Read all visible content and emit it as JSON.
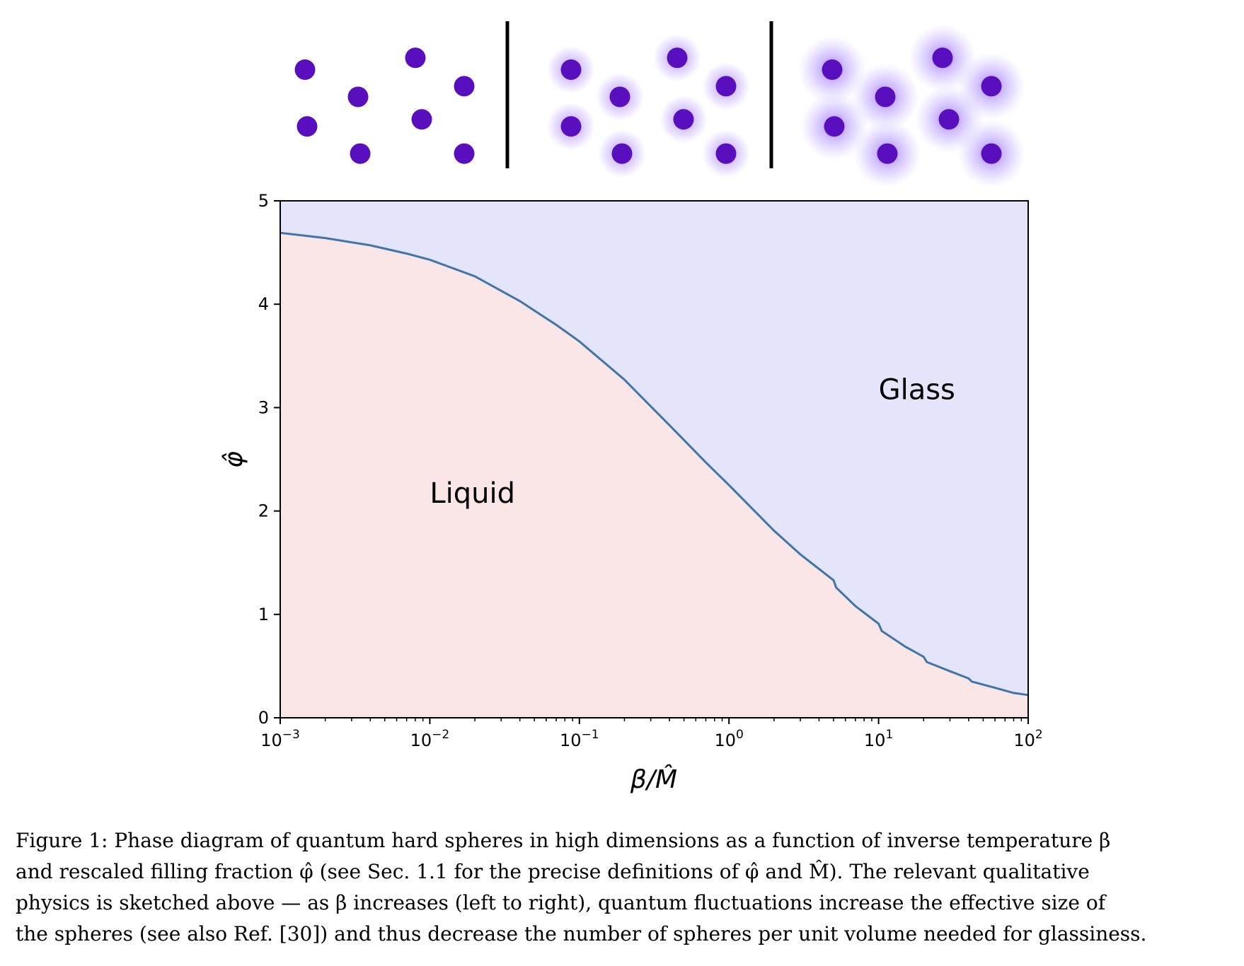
{
  "colors": {
    "sphere": "#5a0fbe",
    "halo": "#a07cff",
    "liquid_fill": "#fae6e6",
    "glass_fill": "#e4e4fa",
    "boundary": "#3f75aa"
  },
  "chart_data": {
    "type": "area",
    "x_scale": "log",
    "xlabel": "β/M̂",
    "ylabel": "φ̂",
    "xlim": [
      0.001,
      100
    ],
    "ylim": [
      0,
      5
    ],
    "x_ticks": [
      {
        "value": 0.001,
        "base": "10",
        "exp": "−3"
      },
      {
        "value": 0.01,
        "base": "10",
        "exp": "−2"
      },
      {
        "value": 0.1,
        "base": "10",
        "exp": "−1"
      },
      {
        "value": 1,
        "base": "10",
        "exp": "0"
      },
      {
        "value": 10,
        "base": "10",
        "exp": "1"
      },
      {
        "value": 100,
        "base": "10",
        "exp": "2"
      }
    ],
    "y_ticks": [
      {
        "value": 0,
        "label": "0"
      },
      {
        "value": 1,
        "label": "1"
      },
      {
        "value": 2,
        "label": "2"
      },
      {
        "value": 3,
        "label": "3"
      },
      {
        "value": 4,
        "label": "4"
      },
      {
        "value": 5,
        "label": "5"
      }
    ],
    "boundary": {
      "x": [
        0.001,
        0.002,
        0.004,
        0.007,
        0.01,
        0.02,
        0.04,
        0.07,
        0.1,
        0.2,
        0.4,
        0.7,
        1.0,
        2.0,
        3.0,
        5.0,
        5.2,
        7.0,
        10.0,
        10.5,
        15.0,
        20.0,
        21.0,
        30.0,
        40.0,
        42.0,
        60.0,
        80.0,
        100.0
      ],
      "y": [
        4.69,
        4.64,
        4.57,
        4.49,
        4.43,
        4.27,
        4.03,
        3.8,
        3.64,
        3.27,
        2.83,
        2.47,
        2.25,
        1.81,
        1.58,
        1.33,
        1.26,
        1.08,
        0.91,
        0.84,
        0.69,
        0.59,
        0.54,
        0.45,
        0.38,
        0.35,
        0.29,
        0.24,
        0.22
      ]
    },
    "regions": [
      {
        "name": "Liquid",
        "label_x": 0.01,
        "label_y": 2.08
      },
      {
        "name": "Glass",
        "label_x": 10.0,
        "label_y": 3.08
      }
    ],
    "grid": false,
    "legend": "none"
  },
  "illustration": {
    "panels": [
      {
        "halo": "none",
        "spheres": [
          [
            0.17,
            0.29
          ],
          [
            0.42,
            0.52
          ],
          [
            0.69,
            0.19
          ],
          [
            0.92,
            0.43
          ],
          [
            0.18,
            0.77
          ],
          [
            0.43,
            1.0
          ],
          [
            0.72,
            0.71
          ],
          [
            0.92,
            1.0
          ]
        ]
      },
      {
        "halo": "small",
        "spheres": [
          [
            0.19,
            0.29
          ],
          [
            0.42,
            0.52
          ],
          [
            0.69,
            0.19
          ],
          [
            0.92,
            0.43
          ],
          [
            0.19,
            0.77
          ],
          [
            0.43,
            1.0
          ],
          [
            0.72,
            0.71
          ],
          [
            0.92,
            1.0
          ]
        ]
      },
      {
        "halo": "large",
        "spheres": [
          [
            0.17,
            0.29
          ],
          [
            0.42,
            0.52
          ],
          [
            0.69,
            0.19
          ],
          [
            0.92,
            0.43
          ],
          [
            0.18,
            0.77
          ],
          [
            0.43,
            1.0
          ],
          [
            0.72,
            0.71
          ],
          [
            0.92,
            1.0
          ]
        ]
      }
    ]
  },
  "caption": {
    "lines": [
      "Figure 1: Phase diagram of quantum hard spheres in high dimensions as a function of inverse temperature β",
      "and rescaled filling fraction φ̂ (see Sec. 1.1 for the precise definitions of φ̂ and M̂). The relevant qualitative",
      "physics is sketched above — as β increases (left to right), quantum fluctuations increase the effective size of",
      "the spheres (see also Ref. [30]) and thus decrease the number of spheres per unit volume needed for glassiness."
    ]
  }
}
